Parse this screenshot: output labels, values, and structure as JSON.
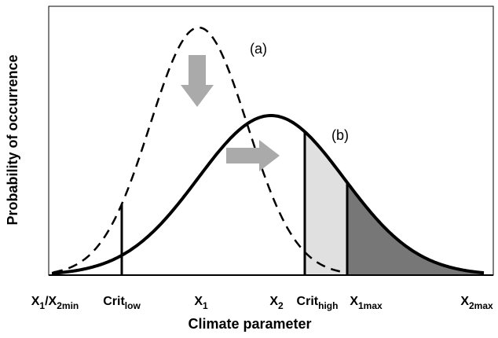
{
  "labels": {
    "a": "(a)",
    "b": "(b)"
  },
  "x_labels": [
    {
      "base": "X",
      "sub": "1",
      "base2": "/X",
      "sub2": "2min"
    },
    {
      "base": "Crit",
      "sub": "low"
    },
    {
      "base": "X",
      "sub": "1"
    },
    {
      "base": "X",
      "sub": "2"
    },
    {
      "base": "Crit",
      "sub": "high"
    },
    {
      "base": "X",
      "sub": "1max"
    },
    {
      "base": "X",
      "sub": "2max"
    }
  ],
  "x_axis_title": "Climate parameter",
  "y_axis_title": "Probability of occurrence"
}
